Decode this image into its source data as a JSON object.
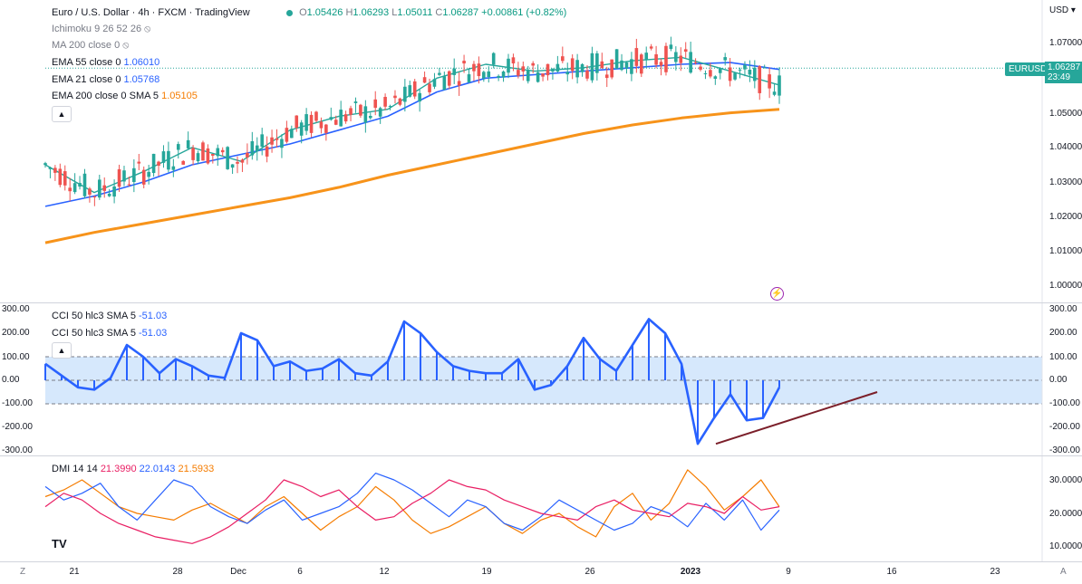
{
  "header": {
    "symbol_title": "Euro / U.S. Dollar · 4h · FXCM · TradingView",
    "ohlc": {
      "o_label": "O",
      "o": "1.05426",
      "h_label": "H",
      "h": "1.06293",
      "l_label": "L",
      "l": "1.05011",
      "c_label": "C",
      "c": "1.06287",
      "change": "+0.00861 (+0.82%)"
    }
  },
  "indicators": {
    "ichimoku": "Ichimoku 9 26 52 26",
    "ma200": "MA 200 close 0",
    "ema55": {
      "label": "EMA 55 close 0",
      "value": "1.06010"
    },
    "ema21": {
      "label": "EMA 21 close 0",
      "value": "1.05768"
    },
    "ema200": {
      "label": "EMA 200 close 0 SMA 5",
      "value": "1.05105"
    },
    "cci1": {
      "label": "CCI 50 hlc3 SMA 5",
      "value": "-51.03"
    },
    "cci2": {
      "label": "CCI 50 hlc3 SMA 5",
      "value": "-51.03"
    },
    "dmi": {
      "label": "DMI 14 14",
      "v1": "21.3990",
      "v2": "22.0143",
      "v3": "21.5933"
    }
  },
  "currency": "USD",
  "price_badge": {
    "symbol": "EURUSD",
    "price": "1.06287",
    "countdown": "23:49"
  },
  "price_axis": [
    "1.07000",
    "1.06000",
    "1.05000",
    "1.04000",
    "1.03000",
    "1.02000",
    "1.01000",
    "1.00000"
  ],
  "cci_axis": [
    "300.00",
    "200.00",
    "100.00",
    "0.00",
    "-100.00",
    "-200.00",
    "-300.00"
  ],
  "dmi_axis": [
    "30.0000",
    "20.0000",
    "10.0000"
  ],
  "time_axis": [
    {
      "label": "21"
    },
    {
      "label": "28"
    },
    {
      "label": "Dec"
    },
    {
      "label": "6"
    },
    {
      "label": "12"
    },
    {
      "label": "19"
    },
    {
      "label": "26"
    },
    {
      "label": "2023",
      "bold": true
    },
    {
      "label": "9"
    },
    {
      "label": "16"
    },
    {
      "label": "23"
    }
  ],
  "corner_left": "Z",
  "corner_right": "A",
  "logo_text": "TV",
  "colors": {
    "up": "#26a69a",
    "down": "#ef5350",
    "ema21": "#26a69a",
    "ema55": "#2962ff",
    "ema200": "#f7931a",
    "cci": "#2962ff",
    "trend": "#7b1f2a",
    "adx": "#f57c00",
    "plus_di": "#2962ff",
    "minus_di": "#e91e63"
  },
  "chart_data": {
    "type": "candlestick",
    "price_range": [
      0.995,
      1.075
    ],
    "ema200": [
      1.0125,
      1.0155,
      1.018,
      1.0205,
      1.023,
      1.0255,
      1.0285,
      1.032,
      1.035,
      1.038,
      1.041,
      1.044,
      1.0465,
      1.0485,
      1.05,
      1.051
    ],
    "ema55": [
      1.023,
      1.026,
      1.03,
      1.035,
      1.038,
      1.041,
      1.045,
      1.049,
      1.056,
      1.06,
      1.061,
      1.062,
      1.063,
      1.064,
      1.0645,
      1.0625
    ],
    "ema21": [
      1.035,
      1.027,
      1.033,
      1.04,
      1.036,
      1.045,
      1.049,
      1.051,
      1.06,
      1.064,
      1.062,
      1.063,
      1.065,
      1.066,
      1.062,
      1.058
    ],
    "cci_range": [
      -300,
      300
    ],
    "cci": [
      70,
      20,
      -30,
      -40,
      10,
      150,
      100,
      30,
      90,
      60,
      20,
      10,
      200,
      170,
      60,
      80,
      40,
      50,
      90,
      30,
      20,
      80,
      250,
      200,
      120,
      60,
      40,
      30,
      30,
      90,
      -40,
      -20,
      60,
      180,
      90,
      40,
      150,
      260,
      200,
      70,
      -270,
      -160,
      -60,
      -170,
      -160,
      -30
    ],
    "cci_trendline": [
      [
        -270,
        0
      ],
      [
        -50,
        1
      ]
    ],
    "dmi_range": [
      5,
      35
    ],
    "adx": [
      25,
      27,
      30,
      26,
      22,
      20,
      19,
      18,
      21,
      23,
      20,
      17,
      22,
      25,
      20,
      15,
      19,
      22,
      28,
      24,
      18,
      14,
      16,
      19,
      22,
      17,
      14,
      18,
      20,
      16,
      13,
      22,
      26,
      18,
      23,
      33,
      28,
      21,
      25,
      30,
      22
    ],
    "plus_di": [
      28,
      24,
      26,
      29,
      22,
      18,
      24,
      30,
      28,
      22,
      19,
      17,
      21,
      24,
      18,
      20,
      22,
      26,
      32,
      30,
      27,
      23,
      19,
      24,
      22,
      17,
      15,
      19,
      24,
      21,
      18,
      15,
      17,
      22,
      20,
      16,
      23,
      18,
      24,
      15,
      21
    ],
    "minus_di": [
      22,
      26,
      24,
      20,
      17,
      15,
      13,
      12,
      11,
      13,
      16,
      20,
      24,
      30,
      28,
      25,
      27,
      22,
      18,
      19,
      23,
      26,
      30,
      28,
      27,
      24,
      22,
      20,
      19,
      18,
      22,
      24,
      21,
      20,
      19,
      23,
      22,
      20,
      25,
      21,
      22
    ]
  }
}
